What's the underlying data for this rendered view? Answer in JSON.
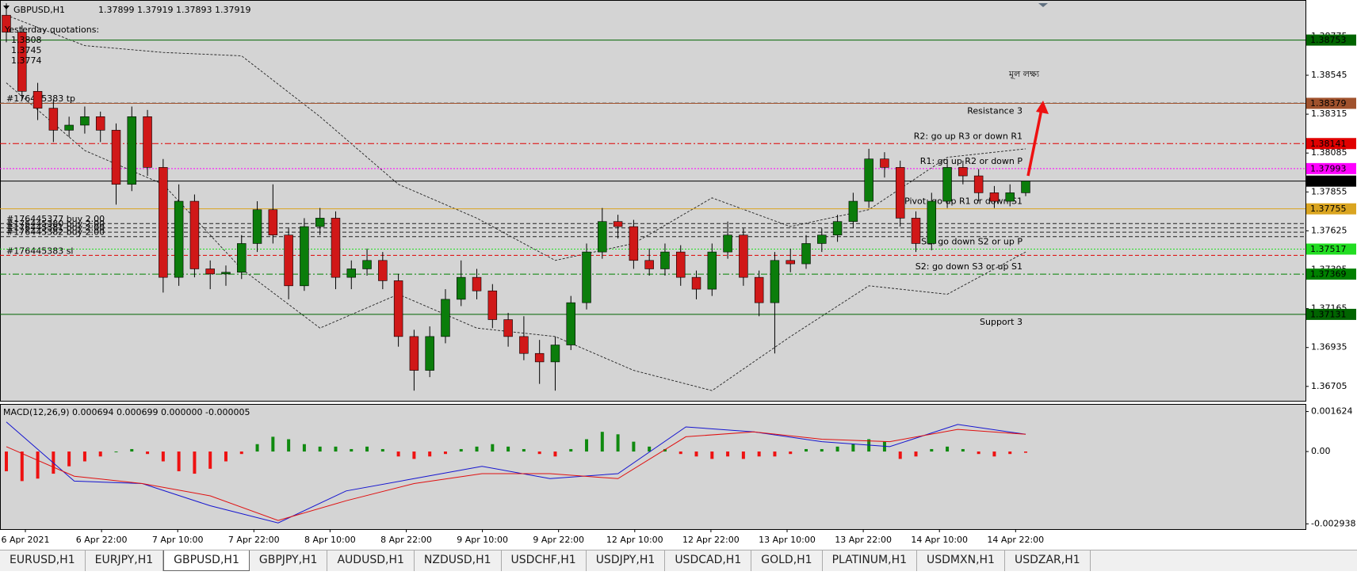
{
  "header": {
    "symbol": "GBPUSD,H1",
    "quote": "1.37899 1.37919 1.37893 1.37919"
  },
  "yesterday": {
    "title": "Yesterday quotations:",
    "values": [
      "1.3808",
      "1.3745",
      "1.3774"
    ]
  },
  "annotation": "মূল লক্ষ্য",
  "chart_data": [
    {
      "type": "candlestick",
      "up_color": "#0b7d0b",
      "down_color": "#d01818",
      "ylim": [
        1.3662,
        1.3899
      ],
      "yticks": [
        1.38775,
        1.38545,
        1.38315,
        1.38085,
        1.37855,
        1.37625,
        1.37395,
        1.37165,
        1.36935,
        1.36705
      ],
      "time_labels": [
        "6 Apr 2021",
        "6 Apr 22:00",
        "7 Apr 10:00",
        "7 Apr 22:00",
        "8 Apr 10:00",
        "8 Apr 22:00",
        "9 Apr 10:00",
        "9 Apr 22:00",
        "12 Apr 10:00",
        "12 Apr 22:00",
        "13 Apr 10:00",
        "13 Apr 22:00",
        "14 Apr 10:00",
        "14 Apr 22:00"
      ],
      "candles": [
        [
          1.389,
          1.3897,
          1.3874,
          1.388
        ],
        [
          1.388,
          1.3884,
          1.384,
          1.3845
        ],
        [
          1.3845,
          1.385,
          1.3828,
          1.3835
        ],
        [
          1.3835,
          1.384,
          1.3815,
          1.3822
        ],
        [
          1.3822,
          1.383,
          1.3818,
          1.3825
        ],
        [
          1.3825,
          1.3836,
          1.382,
          1.383
        ],
        [
          1.383,
          1.3833,
          1.3815,
          1.3822
        ],
        [
          1.3822,
          1.3826,
          1.3778,
          1.379
        ],
        [
          1.379,
          1.3836,
          1.3786,
          1.383
        ],
        [
          1.383,
          1.3834,
          1.3795,
          1.38
        ],
        [
          1.38,
          1.3805,
          1.3726,
          1.3735
        ],
        [
          1.3735,
          1.379,
          1.373,
          1.378
        ],
        [
          1.378,
          1.3784,
          1.3735,
          1.374
        ],
        [
          1.374,
          1.3745,
          1.3728,
          1.3737
        ],
        [
          1.3737,
          1.3742,
          1.373,
          1.3738
        ],
        [
          1.3738,
          1.376,
          1.3734,
          1.3755
        ],
        [
          1.3755,
          1.378,
          1.375,
          1.3775
        ],
        [
          1.3775,
          1.379,
          1.3755,
          1.376
        ],
        [
          1.376,
          1.3764,
          1.3722,
          1.373
        ],
        [
          1.373,
          1.377,
          1.3727,
          1.3765
        ],
        [
          1.3765,
          1.3776,
          1.376,
          1.377
        ],
        [
          1.377,
          1.3774,
          1.3728,
          1.3735
        ],
        [
          1.3735,
          1.3745,
          1.3728,
          1.374
        ],
        [
          1.374,
          1.3752,
          1.3736,
          1.3745
        ],
        [
          1.3745,
          1.375,
          1.3728,
          1.3733
        ],
        [
          1.3733,
          1.3737,
          1.3694,
          1.37
        ],
        [
          1.37,
          1.3704,
          1.3668,
          1.368
        ],
        [
          1.368,
          1.3706,
          1.3676,
          1.37
        ],
        [
          1.37,
          1.3728,
          1.3696,
          1.3722
        ],
        [
          1.3722,
          1.3745,
          1.3718,
          1.3735
        ],
        [
          1.3735,
          1.374,
          1.3722,
          1.3727
        ],
        [
          1.3727,
          1.3731,
          1.3705,
          1.371
        ],
        [
          1.371,
          1.3714,
          1.3694,
          1.37
        ],
        [
          1.37,
          1.3712,
          1.3686,
          1.369
        ],
        [
          1.369,
          1.3698,
          1.3672,
          1.3685
        ],
        [
          1.3685,
          1.37,
          1.3668,
          1.3695
        ],
        [
          1.3695,
          1.3724,
          1.3692,
          1.372
        ],
        [
          1.372,
          1.3755,
          1.3716,
          1.375
        ],
        [
          1.375,
          1.3776,
          1.3746,
          1.3768
        ],
        [
          1.3768,
          1.3772,
          1.3758,
          1.3765
        ],
        [
          1.3765,
          1.3769,
          1.374,
          1.3745
        ],
        [
          1.3745,
          1.3752,
          1.3736,
          1.374
        ],
        [
          1.374,
          1.3755,
          1.3736,
          1.375
        ],
        [
          1.375,
          1.3754,
          1.373,
          1.3735
        ],
        [
          1.3735,
          1.3739,
          1.3722,
          1.3728
        ],
        [
          1.3728,
          1.3755,
          1.3724,
          1.375
        ],
        [
          1.375,
          1.3768,
          1.3746,
          1.376
        ],
        [
          1.376,
          1.3764,
          1.373,
          1.3735
        ],
        [
          1.3735,
          1.3739,
          1.3712,
          1.372
        ],
        [
          1.372,
          1.375,
          1.369,
          1.3745
        ],
        [
          1.3745,
          1.3752,
          1.3738,
          1.3743
        ],
        [
          1.3743,
          1.376,
          1.374,
          1.3755
        ],
        [
          1.3755,
          1.3764,
          1.375,
          1.376
        ],
        [
          1.376,
          1.3772,
          1.3756,
          1.3768
        ],
        [
          1.3768,
          1.3785,
          1.3764,
          1.378
        ],
        [
          1.378,
          1.3811,
          1.3776,
          1.3805
        ],
        [
          1.3805,
          1.3809,
          1.3794,
          1.38
        ],
        [
          1.38,
          1.3804,
          1.3765,
          1.377
        ],
        [
          1.377,
          1.3774,
          1.375,
          1.3755
        ],
        [
          1.3755,
          1.3785,
          1.3751,
          1.378
        ],
        [
          1.378,
          1.3805,
          1.3776,
          1.38
        ],
        [
          1.38,
          1.3804,
          1.379,
          1.3795
        ],
        [
          1.3795,
          1.3799,
          1.378,
          1.3785
        ],
        [
          1.3785,
          1.3789,
          1.3776,
          1.378
        ],
        [
          1.378,
          1.379,
          1.3777,
          1.3785
        ],
        [
          1.3785,
          1.37919,
          1.3783,
          1.37919
        ]
      ],
      "bands": {
        "upper": [
          1.389,
          1.3872,
          1.3868,
          1.3866,
          1.383,
          1.379,
          1.377,
          1.3745,
          1.3755,
          1.3782,
          1.3765,
          1.3775,
          1.3806,
          1.3811
        ],
        "lower": [
          1.385,
          1.381,
          1.379,
          1.374,
          1.3705,
          1.3725,
          1.3705,
          1.37,
          1.368,
          1.3668,
          1.37,
          1.373,
          1.3725,
          1.375
        ]
      },
      "levels": [
        {
          "value": 1.38753,
          "color": "#006400",
          "style": "solid"
        },
        {
          "value": 1.38379,
          "color": "#a0522d",
          "style": "solid",
          "text": "Resistance 3"
        },
        {
          "value": 1.38141,
          "color": "#e00000",
          "style": "dashdot",
          "text": "R2: go up R3 or down R1"
        },
        {
          "value": 1.37993,
          "color": "#ff00ff",
          "style": "dot",
          "text": "R1: go up R2 or down P"
        },
        {
          "value": 1.37919,
          "color": "#000000",
          "style": "solid"
        },
        {
          "value": 1.37755,
          "color": "#daa520",
          "style": "solid",
          "text": "Pivot: go up R1 or down S1"
        },
        {
          "value": 1.37517,
          "color": "#22dd22",
          "style": "dot",
          "text": "S1: go down S2 or up P"
        },
        {
          "value": 1.37369,
          "color": "#008000",
          "style": "dashdot",
          "text": "S2: go down S3 or up S1"
        },
        {
          "value": 1.37131,
          "color": "#006400",
          "style": "solid",
          "text": "Support 3"
        }
      ],
      "orders": [
        {
          "value": 1.3838,
          "color": "#202020",
          "text": "#176445383 tp"
        },
        {
          "value": 1.37668,
          "color": "#202020",
          "text": "#176445377 buy 2.00"
        },
        {
          "value": 1.37642,
          "color": "#202020",
          "text": "#176445380 buy 2.00"
        },
        {
          "value": 1.37617,
          "color": "#202020",
          "text": "#176445381 buy 2.00"
        },
        {
          "value": 1.37591,
          "color": "#202020",
          "text": "#176445382 buy 2.00"
        },
        {
          "value": 1.3748,
          "color": "#e00000",
          "text": "#176445383 sl"
        }
      ]
    },
    {
      "type": "macd",
      "title": "MACD(12,26,9) 0.000694 0.000699 0.000000 -0.000005",
      "ylim": [
        -0.00315,
        0.0019
      ],
      "yticks": [
        0.001624,
        {
          "value": 0,
          "label": "0.00"
        },
        -0.002938
      ],
      "pos_color": "#108a10",
      "neg_color": "#ee1111",
      "histogram": [
        -0.0008,
        -0.0012,
        -0.0011,
        -0.0009,
        -0.0006,
        -0.0004,
        -0.0002,
        0.0,
        0.0001,
        -0.0001,
        -0.0004,
        -0.0008,
        -0.0009,
        -0.0007,
        -0.0004,
        -0.0001,
        0.0003,
        0.0006,
        0.0005,
        0.0003,
        0.0002,
        0.0002,
        0.0001,
        0.0002,
        0.0001,
        -0.0002,
        -0.0003,
        -0.0002,
        -0.0001,
        0.0001,
        0.0002,
        0.0003,
        0.0002,
        0.0001,
        -0.0001,
        -0.0002,
        0.0001,
        0.0005,
        0.0008,
        0.0007,
        0.0004,
        0.0002,
        0.0001,
        -0.0001,
        -0.0002,
        -0.0003,
        -0.0002,
        -0.0003,
        -0.0002,
        -0.0002,
        -0.0001,
        0.0001,
        0.0001,
        0.0002,
        0.0003,
        0.0005,
        0.0004,
        -0.0003,
        -0.0002,
        0.0001,
        0.0002,
        0.0001,
        -0.0001,
        -0.0002,
        -0.0001,
        -5e-05
      ],
      "macd": {
        "color": "#1515d0",
        "values": [
          0.0012,
          -0.0012,
          -0.0013,
          -0.0022,
          -0.0029,
          -0.0016,
          -0.0011,
          -0.0006,
          -0.0011,
          -0.0009,
          0.001,
          0.0008,
          0.0004,
          0.0002,
          0.0011,
          0.0007
        ]
      },
      "signal": {
        "color": "#e01010",
        "values": [
          0.0002,
          -0.001,
          -0.0013,
          -0.0018,
          -0.0028,
          -0.002,
          -0.0013,
          -0.0009,
          -0.0009,
          -0.0011,
          0.0006,
          0.0008,
          0.0005,
          0.0004,
          0.0009,
          0.0007
        ]
      }
    }
  ],
  "tabs": [
    "EURUSD,H1",
    "EURJPY,H1",
    "GBPUSD,H1",
    "GBPJPY,H1",
    "AUDUSD,H1",
    "NZDUSD,H1",
    "USDCHF,H1",
    "USDJPY,H1",
    "USDCAD,H1",
    "GOLD,H1",
    "PLATINUM,H1",
    "USDMXN,H1",
    "USDZAR,H1"
  ],
  "active_tab": 2
}
